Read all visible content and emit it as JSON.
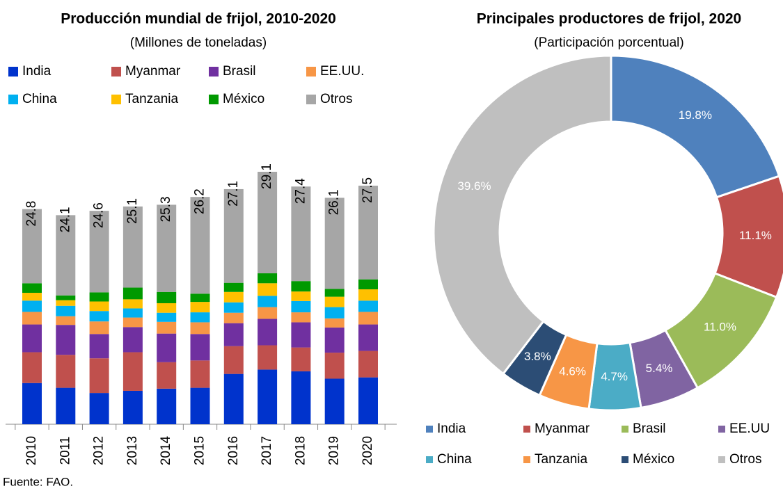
{
  "source": "Fuente: FAO.",
  "chart_data": [
    {
      "type": "bar",
      "stacked": true,
      "title": "Producción mundial de frijol, 2010-2020",
      "subtitle": "(Millones de toneladas)",
      "categories": [
        "2010",
        "2011",
        "2012",
        "2013",
        "2014",
        "2015",
        "2016",
        "2017",
        "2018",
        "2019",
        "2020"
      ],
      "totals": [
        24.8,
        24.1,
        24.6,
        25.1,
        25.3,
        26.2,
        27.1,
        29.1,
        27.4,
        26.1,
        27.5
      ],
      "series": [
        {
          "name": "India",
          "color": "#0033cc",
          "values": [
            4.75,
            4.2,
            3.6,
            3.85,
            4.1,
            4.2,
            5.8,
            6.3,
            6.1,
            5.25,
            5.4
          ]
        },
        {
          "name": "Myanmar",
          "color": "#c0504d",
          "values": [
            3.55,
            3.8,
            4.0,
            4.45,
            3.05,
            3.15,
            3.2,
            2.8,
            2.75,
            3.0,
            3.05
          ]
        },
        {
          "name": "Brasil",
          "color": "#7030a0",
          "values": [
            3.2,
            3.45,
            2.8,
            2.9,
            3.3,
            3.05,
            2.65,
            3.05,
            2.9,
            2.9,
            3.05
          ]
        },
        {
          "name": "EE.UU.",
          "color": "#f79646",
          "values": [
            1.45,
            1.0,
            1.45,
            1.1,
            1.35,
            1.35,
            1.2,
            1.35,
            1.15,
            1.05,
            1.45
          ]
        },
        {
          "name": "China",
          "color": "#00b0f0",
          "values": [
            1.3,
            1.2,
            1.2,
            1.05,
            1.05,
            1.15,
            1.2,
            1.3,
            1.3,
            1.3,
            1.3
          ]
        },
        {
          "name": "Tanzania",
          "color": "#ffc000",
          "values": [
            0.9,
            0.65,
            1.1,
            1.05,
            1.1,
            1.2,
            1.2,
            1.45,
            1.1,
            1.2,
            1.3
          ]
        },
        {
          "name": "México",
          "color": "#009900",
          "values": [
            1.1,
            0.55,
            1.05,
            1.35,
            1.3,
            0.95,
            1.05,
            1.15,
            1.2,
            0.9,
            1.15
          ]
        },
        {
          "name": "Otros",
          "color": "#a6a6a6",
          "values": [
            8.55,
            9.25,
            9.4,
            9.35,
            10.05,
            11.15,
            10.8,
            11.7,
            10.9,
            10.5,
            10.8
          ]
        }
      ]
    },
    {
      "type": "pie",
      "donut": true,
      "title": "Principales productores de frijol, 2020",
      "subtitle": "(Participación porcentual)",
      "categories": [
        "India",
        "Myanmar",
        "Brasil",
        "EE.UU",
        "China",
        "Tanzania",
        "México",
        "Otros"
      ],
      "values": [
        19.8,
        11.1,
        11.0,
        5.4,
        4.7,
        4.6,
        3.8,
        39.6
      ],
      "value_labels": [
        "19.8%",
        "11.1%",
        "11.0%",
        "5.4%",
        "4.7%",
        "4.6%",
        "3.8%",
        "39.6%"
      ],
      "colors": [
        "#4f81bd",
        "#c0504d",
        "#9bbb59",
        "#8064a2",
        "#4bacc6",
        "#f79646",
        "#2c4d75",
        "#bfbfbf"
      ]
    }
  ]
}
